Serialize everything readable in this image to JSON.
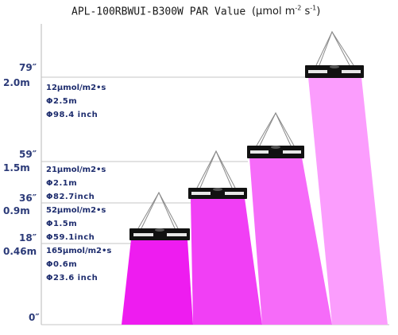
{
  "title": {
    "model": "APL-100RBWUI-B300W PAR Value",
    "unit_text": "(μmol m",
    "unit_exp1": "-2",
    "unit_mid": " s",
    "unit_exp2": "-1",
    "unit_close": ")"
  },
  "colors": {
    "beam_46": "#ee1cf0",
    "beam_09": "#f13ff5",
    "beam_15": "#f66bf9",
    "beam_20": "#fb9dfd",
    "label": "#2b3a78",
    "lamp": "#111111",
    "rule": "#b8b8b8"
  },
  "levels": [
    {
      "inch": "79″",
      "metric": "2.0m"
    },
    {
      "inch": "59″",
      "metric": "1.5m"
    },
    {
      "inch": "36″",
      "metric": "0.9m"
    },
    {
      "inch": "18″",
      "metric": "0.46m"
    }
  ],
  "floor_label": "0″",
  "specs": [
    {
      "ppfd": "12μmol/m2•s",
      "dia_m": "Φ2.5m",
      "dia_in": "Φ98.4 inch"
    },
    {
      "ppfd": "21μmol/m2•s",
      "dia_m": "Φ2.1m",
      "dia_in": "Φ82.7inch"
    },
    {
      "ppfd": "52μmol/m2•s",
      "dia_m": "Φ1.5m",
      "dia_in": "Φ59.1inch"
    },
    {
      "ppfd": "165μmol/m2•s",
      "dia_m": "Φ0.6m",
      "dia_in": "Φ23.6 inch"
    }
  ],
  "lamp_icon": "led-grow-light-icon"
}
